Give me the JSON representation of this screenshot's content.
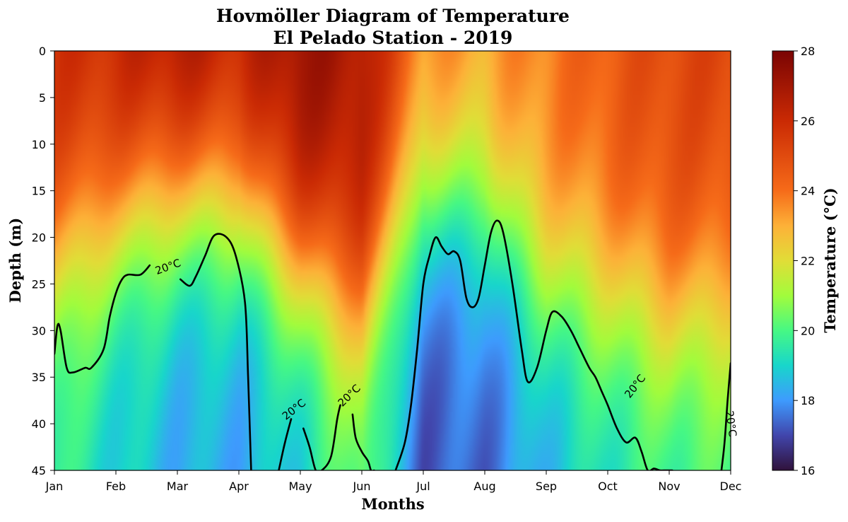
{
  "chart_data": {
    "type": "heatmap",
    "title": "Hovmöller Diagram of Temperature",
    "subtitle": "El Pelado Station - 2019",
    "xlabel": "Months",
    "ylabel": "Depth (m)",
    "x_ticks": [
      "Jan",
      "Feb",
      "Mar",
      "Apr",
      "May",
      "Jun",
      "Jul",
      "Aug",
      "Sep",
      "Oct",
      "Nov",
      "Dec"
    ],
    "y_ticks": [
      0,
      5,
      10,
      15,
      20,
      25,
      30,
      35,
      40,
      45
    ],
    "ylim": [
      45,
      0
    ],
    "y_inverted": true,
    "colorbar": {
      "label": "Temperature (°C)",
      "min": 16,
      "max": 28,
      "ticks": [
        16,
        18,
        20,
        22,
        24,
        26,
        28
      ],
      "colormap": "turbo"
    },
    "contour": {
      "level": 20,
      "label": "20°C",
      "color": "#000000",
      "paths": [
        {
          "x": [
            0.0,
            0.05,
            0.1,
            0.2,
            0.3,
            0.5,
            0.6,
            0.8,
            0.9,
            1.0,
            1.1,
            1.2,
            1.4,
            1.55
          ],
          "y": [
            32.5,
            29.5,
            30.0,
            34.0,
            34.5,
            34.0,
            34.0,
            32.0,
            28.5,
            26.0,
            24.5,
            24.0,
            24.0,
            23.0
          ]
        },
        {
          "x": [
            2.05,
            2.2,
            2.3,
            2.45,
            2.6,
            2.8,
            2.95,
            3.1,
            3.15,
            3.2
          ],
          "y": [
            24.5,
            25.2,
            24.2,
            22.0,
            19.8,
            20.0,
            22.0,
            27.0,
            35.0,
            45.0
          ]
        },
        {
          "x": [
            3.65,
            3.75,
            3.85
          ],
          "y": [
            45.0,
            42.0,
            39.5
          ]
        },
        {
          "x": [
            4.05,
            4.15,
            4.25,
            4.35,
            4.5,
            4.6,
            4.65
          ],
          "y": [
            40.5,
            42.5,
            45.0,
            45.0,
            43.5,
            39.5,
            38.0
          ]
        },
        {
          "x": [
            4.85,
            4.9,
            5.0,
            5.1,
            5.15,
            5.2
          ],
          "y": [
            39.0,
            41.5,
            43.0,
            44.0,
            45.0,
            45.0
          ]
        },
        {
          "x": [
            5.55,
            5.7,
            5.8,
            5.9,
            6.0,
            6.1,
            6.2,
            6.3,
            6.4,
            6.5,
            6.6,
            6.7,
            6.8,
            6.9,
            7.0,
            7.1,
            7.2,
            7.3,
            7.45,
            7.6,
            7.7,
            7.85,
            8.0,
            8.1,
            8.25,
            8.4,
            8.55,
            8.7,
            8.8,
            8.9,
            9.0,
            9.15,
            9.3,
            9.45,
            9.55,
            9.65,
            9.75,
            9.85,
            9.95,
            10.05
          ],
          "y": [
            45.0,
            42.0,
            38.0,
            32.0,
            25.0,
            22.0,
            20.0,
            21.0,
            21.8,
            21.5,
            22.5,
            26.5,
            27.5,
            26.5,
            23.0,
            19.5,
            18.2,
            19.5,
            25.0,
            32.0,
            35.5,
            34.0,
            30.0,
            28.0,
            28.5,
            30.0,
            32.0,
            34.0,
            35.0,
            36.5,
            38.0,
            40.5,
            42.0,
            41.5,
            43.0,
            45.0,
            44.8,
            45.0,
            45.0,
            45.0
          ]
        },
        {
          "x": [
            10.85,
            10.9,
            10.95,
            11.0
          ],
          "y": [
            45.0,
            42.0,
            37.5,
            33.5
          ]
        }
      ],
      "label_positions": [
        {
          "x": 1.85,
          "y": 23.2,
          "angle": -20
        },
        {
          "x": 3.9,
          "y": 38.5,
          "angle": -38
        },
        {
          "x": 4.8,
          "y": 37.0,
          "angle": -44
        },
        {
          "x": 9.45,
          "y": 36.0,
          "angle": -52
        },
        {
          "x": 11.0,
          "y": 40.0,
          "angle": 82
        }
      ]
    }
  }
}
